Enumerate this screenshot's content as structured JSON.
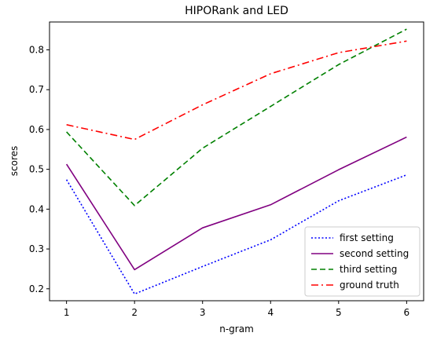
{
  "chart_data": {
    "type": "line",
    "title": "HIPORank and LED",
    "xlabel": "n-gram",
    "ylabel": "scores",
    "x": [
      1,
      2,
      3,
      4,
      5,
      6
    ],
    "xlim": [
      0.75,
      6.25
    ],
    "ylim": [
      0.17,
      0.87
    ],
    "xticks": [
      "1",
      "2",
      "3",
      "4",
      "5",
      "6"
    ],
    "yticks": [
      "0.2",
      "0.3",
      "0.4",
      "0.5",
      "0.6",
      "0.7",
      "0.8"
    ],
    "grid": false,
    "legend_position": "lower-right",
    "series": [
      {
        "name": "first setting",
        "values": [
          0.474,
          0.187,
          0.256,
          0.323,
          0.421,
          0.486
        ],
        "color": "#0000ff",
        "linestyle": "dotted"
      },
      {
        "name": "second setting",
        "values": [
          0.513,
          0.248,
          0.353,
          0.411,
          0.499,
          0.581
        ],
        "color": "#800080",
        "linestyle": "solid"
      },
      {
        "name": "third setting",
        "values": [
          0.594,
          0.409,
          0.553,
          0.658,
          0.763,
          0.852
        ],
        "color": "#008000",
        "linestyle": "dashed"
      },
      {
        "name": "ground truth",
        "values": [
          0.612,
          0.575,
          0.662,
          0.74,
          0.793,
          0.822
        ],
        "color": "#ff0000",
        "linestyle": "dashdot"
      }
    ]
  }
}
